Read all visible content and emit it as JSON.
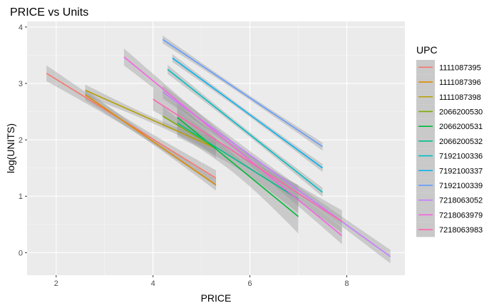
{
  "chart_data": {
    "type": "line",
    "title": "PRICE vs Units",
    "xlabel": "PRICE",
    "ylabel": "log(UNITS)",
    "xlim": [
      1.4,
      9.2
    ],
    "ylim": [
      -0.4,
      4.1
    ],
    "xticks": [
      2,
      4,
      6,
      8
    ],
    "yticks": [
      0,
      1,
      2,
      3,
      4
    ],
    "grid": true,
    "confidence_band": true,
    "legend_title": "UPC",
    "legend_position": "right",
    "series": [
      {
        "name": "1111087395",
        "color": "#F8766D",
        "x": [
          1.8,
          5.3
        ],
        "y": [
          3.18,
          1.32
        ],
        "se": 0.14
      },
      {
        "name": "1111087396",
        "color": "#DE8C00",
        "x": [
          2.6,
          5.3
        ],
        "y": [
          2.8,
          1.2
        ],
        "se": 0.1
      },
      {
        "name": "1111087398",
        "color": "#B79F00",
        "x": [
          2.6,
          5.3
        ],
        "y": [
          2.88,
          1.85
        ],
        "se": 0.1
      },
      {
        "name": "2066200530",
        "color": "#7CAE00",
        "x": [
          4.2,
          5.3
        ],
        "y": [
          2.42,
          1.85
        ],
        "se": 0.18
      },
      {
        "name": "2066200531",
        "color": "#00BA38",
        "x": [
          4.5,
          7.0
        ],
        "y": [
          2.4,
          0.64
        ],
        "se": 0.3
      },
      {
        "name": "2066200532",
        "color": "#00C08B",
        "x": [
          4.5,
          7.0
        ],
        "y": [
          2.3,
          0.95
        ],
        "se": 0.25
      },
      {
        "name": "7192100336",
        "color": "#00BFC4",
        "x": [
          4.3,
          7.5
        ],
        "y": [
          3.25,
          1.07
        ],
        "se": 0.08
      },
      {
        "name": "7192100337",
        "color": "#00B4F0",
        "x": [
          4.4,
          7.5
        ],
        "y": [
          3.45,
          1.5
        ],
        "se": 0.07
      },
      {
        "name": "7192100339",
        "color": "#619CFF",
        "x": [
          4.2,
          7.5
        ],
        "y": [
          3.78,
          1.88
        ],
        "se": 0.07
      },
      {
        "name": "7218063052",
        "color": "#C77CFF",
        "x": [
          4.2,
          8.9
        ],
        "y": [
          2.85,
          -0.07
        ],
        "se": 0.12
      },
      {
        "name": "7218063979",
        "color": "#F564E3",
        "x": [
          3.4,
          7.9
        ],
        "y": [
          3.47,
          0.3
        ],
        "se": 0.15
      },
      {
        "name": "7218063983",
        "color": "#FF64B0",
        "x": [
          4.0,
          7.9
        ],
        "y": [
          2.72,
          0.55
        ],
        "se": 0.2
      }
    ]
  }
}
